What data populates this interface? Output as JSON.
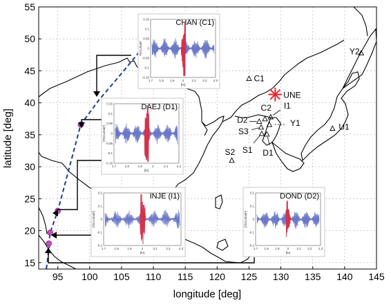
{
  "chart_data": {
    "type": "scatter",
    "title": "",
    "xlabel": "longitude [deg]",
    "ylabel": "latitude [deg]",
    "xlim": [
      92,
      145
    ],
    "ylim": [
      14,
      55
    ],
    "xticks": [
      95,
      100,
      105,
      110,
      115,
      120,
      125,
      130,
      135,
      140,
      145
    ],
    "yticks": [
      15,
      20,
      25,
      30,
      35,
      40,
      45,
      50,
      55
    ],
    "grid": true,
    "event": {
      "label": "UNE",
      "lon": 129.1,
      "lat": 41.3,
      "color": "#e8262b"
    },
    "stations": [
      {
        "label": "C1",
        "lon": 125.0,
        "lat": 43.8
      },
      {
        "label": "C2",
        "lon": 127.5,
        "lat": 37.5
      },
      {
        "label": "I1",
        "lon": 128.4,
        "lat": 37.8
      },
      {
        "label": "D2",
        "lon": 126.6,
        "lat": 37.1
      },
      {
        "label": "Y1",
        "lon": 128.2,
        "lat": 36.6
      },
      {
        "label": "S3",
        "lon": 126.9,
        "lat": 36.2
      },
      {
        "label": "S1",
        "lon": 127.0,
        "lat": 35.2
      },
      {
        "label": "D1",
        "lon": 127.8,
        "lat": 35.1
      },
      {
        "label": "S2",
        "lon": 122.3,
        "lat": 31.0
      },
      {
        "label": "U1",
        "lon": 138.1,
        "lat": 36.0
      },
      {
        "label": "Y2",
        "lon": 142.6,
        "lat": 47.8
      }
    ],
    "ground_track": [
      {
        "lon": 98.6,
        "lat": 36.6
      },
      {
        "lon": 95.0,
        "lat": 23.1
      },
      {
        "lon": 93.8,
        "lat": 19.7
      },
      {
        "lon": 93.6,
        "lat": 18.0
      }
    ],
    "insets": [
      {
        "title": "CHAN (C1)",
        "ylabel": "TECu/min²",
        "xlabel": "[hr]",
        "xticks": [
          "1.7",
          "1.8",
          "1.9",
          "2",
          "2.1",
          "2.2",
          "2.3"
        ],
        "yticks": [
          "0.15",
          "0.1",
          "0.05",
          "0",
          "-0.05",
          "-0.1",
          "-0.15"
        ]
      },
      {
        "title": "DAEJ (D1)",
        "ylabel": "[TECu/min²]",
        "xlabel": "[hr]",
        "xticks": [
          "1.7",
          "1.8",
          "1.9",
          "2",
          "2.1",
          "2.2"
        ],
        "yticks": [
          "0.15",
          "0.1",
          "0.05",
          "0",
          "-0.05",
          "-0.1",
          "-0.15"
        ]
      },
      {
        "title": "INJE (I1)",
        "ylabel": "[TECu/min²]",
        "xlabel": "[hr]",
        "xticks": [
          "1.7",
          "1.8",
          "1.9",
          "2",
          "2.1",
          "2.2",
          "2.3"
        ],
        "yticks": [
          "0.2",
          "0.1",
          "0",
          "-0.1",
          "-0.2"
        ]
      },
      {
        "title": "DOND (D2)",
        "ylabel": "[TECu/min²]",
        "xlabel": "[hr]",
        "xticks": [
          "1.7",
          "1.8",
          "1.9",
          "2",
          "2.1",
          "2.2",
          "2.3"
        ],
        "yticks": [
          "0.2",
          "0.1",
          "0",
          "-0.1",
          "-0.2"
        ]
      }
    ]
  }
}
